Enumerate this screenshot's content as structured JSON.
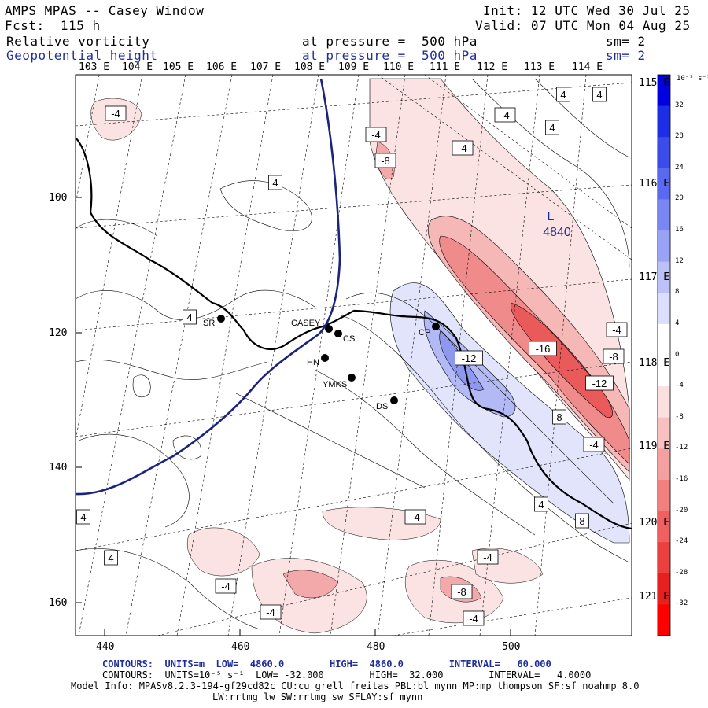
{
  "header": {
    "title": "AMPS MPAS -- Casey Window",
    "init": "Init: 12 UTC Wed 30 Jul 25",
    "forecast": "Fcst:  115 h",
    "valid": "Valid: 07 UTC Mon 04 Aug 25",
    "field1_name": "Relative vorticity",
    "field1_level": "at pressure =  500 hPa",
    "field1_sm": "sm= 2",
    "field2_name": "Geopotential height",
    "field2_level": "at pressure =  500 hPa",
    "field2_sm": "sm= 2"
  },
  "axes": {
    "top_lon_labels": [
      "103 E",
      "104 E",
      "105 E",
      "106 E",
      "107 E",
      "108 E",
      "109 E",
      "110 E",
      "111 E",
      "112 E",
      "113 E",
      "114 E"
    ],
    "right_lon_labels": [
      "115 E",
      "116 E",
      "117 E",
      "118 E",
      "119 E",
      "120 E",
      "121 E"
    ],
    "x_ticks": [
      "440",
      "460",
      "480",
      "500"
    ],
    "y_ticks": [
      "100",
      "120",
      "140",
      "160"
    ]
  },
  "colorbar": {
    "unit_label": "10⁻⁵ s⁻¹",
    "labels": [
      "32",
      "28",
      "24",
      "20",
      "16",
      "12",
      "8",
      "4",
      "0",
      "-4",
      "-8",
      "-12",
      "-16",
      "-20",
      "-24",
      "-28",
      "-32"
    ],
    "colors": [
      "#0000e0",
      "#1e2ee6",
      "#3c4ceb",
      "#5a6af0",
      "#7a86f2",
      "#9aa2f5",
      "#bcc1f8",
      "#dcdffb",
      "#ffffff",
      "#ffffff",
      "#fbe0e0",
      "#f8c0c0",
      "#f5a0a0",
      "#f28080",
      "#f06060",
      "#eb4040",
      "#e61f1f",
      "#ff0000"
    ]
  },
  "stations": [
    "SR",
    "CASEY",
    "CS",
    "CP",
    "HN",
    "YMKS",
    "DS"
  ],
  "map_labels": {
    "low_marker": "L",
    "low_value": "4840",
    "contour_labels": [
      "-4",
      "-4",
      "-4",
      "-8",
      "4",
      "4",
      "4",
      "-4",
      "4",
      "-4",
      "-12",
      "-16",
      "-8",
      "-4",
      "-12",
      "8",
      "4",
      "4",
      "8",
      "-4",
      "4",
      "4",
      "-4",
      "-4",
      "-8",
      "-4",
      "-4",
      "-4",
      "4",
      "4"
    ]
  },
  "footer": {
    "line1": "CONTOURS:  UNITS=m  LOW=  4860.0        HIGH=  4860.0        INTERVAL=   60.000",
    "line2": "CONTOURS:  UNITS=10⁻⁵ s⁻¹  LOW= -32.000        HIGH=  32.000        INTERVAL=   4.0000",
    "line3": "Model Info: MPASv8.2.3-194-gf29cd82c CU:cu_grell_freitas PBL:bl_mynn MP:mp_thompson SF:sf_noahmp 8.0",
    "line4": "LW:rrtmg_lw SW:rrtmg_sw SFLAY:sf_mynn"
  }
}
